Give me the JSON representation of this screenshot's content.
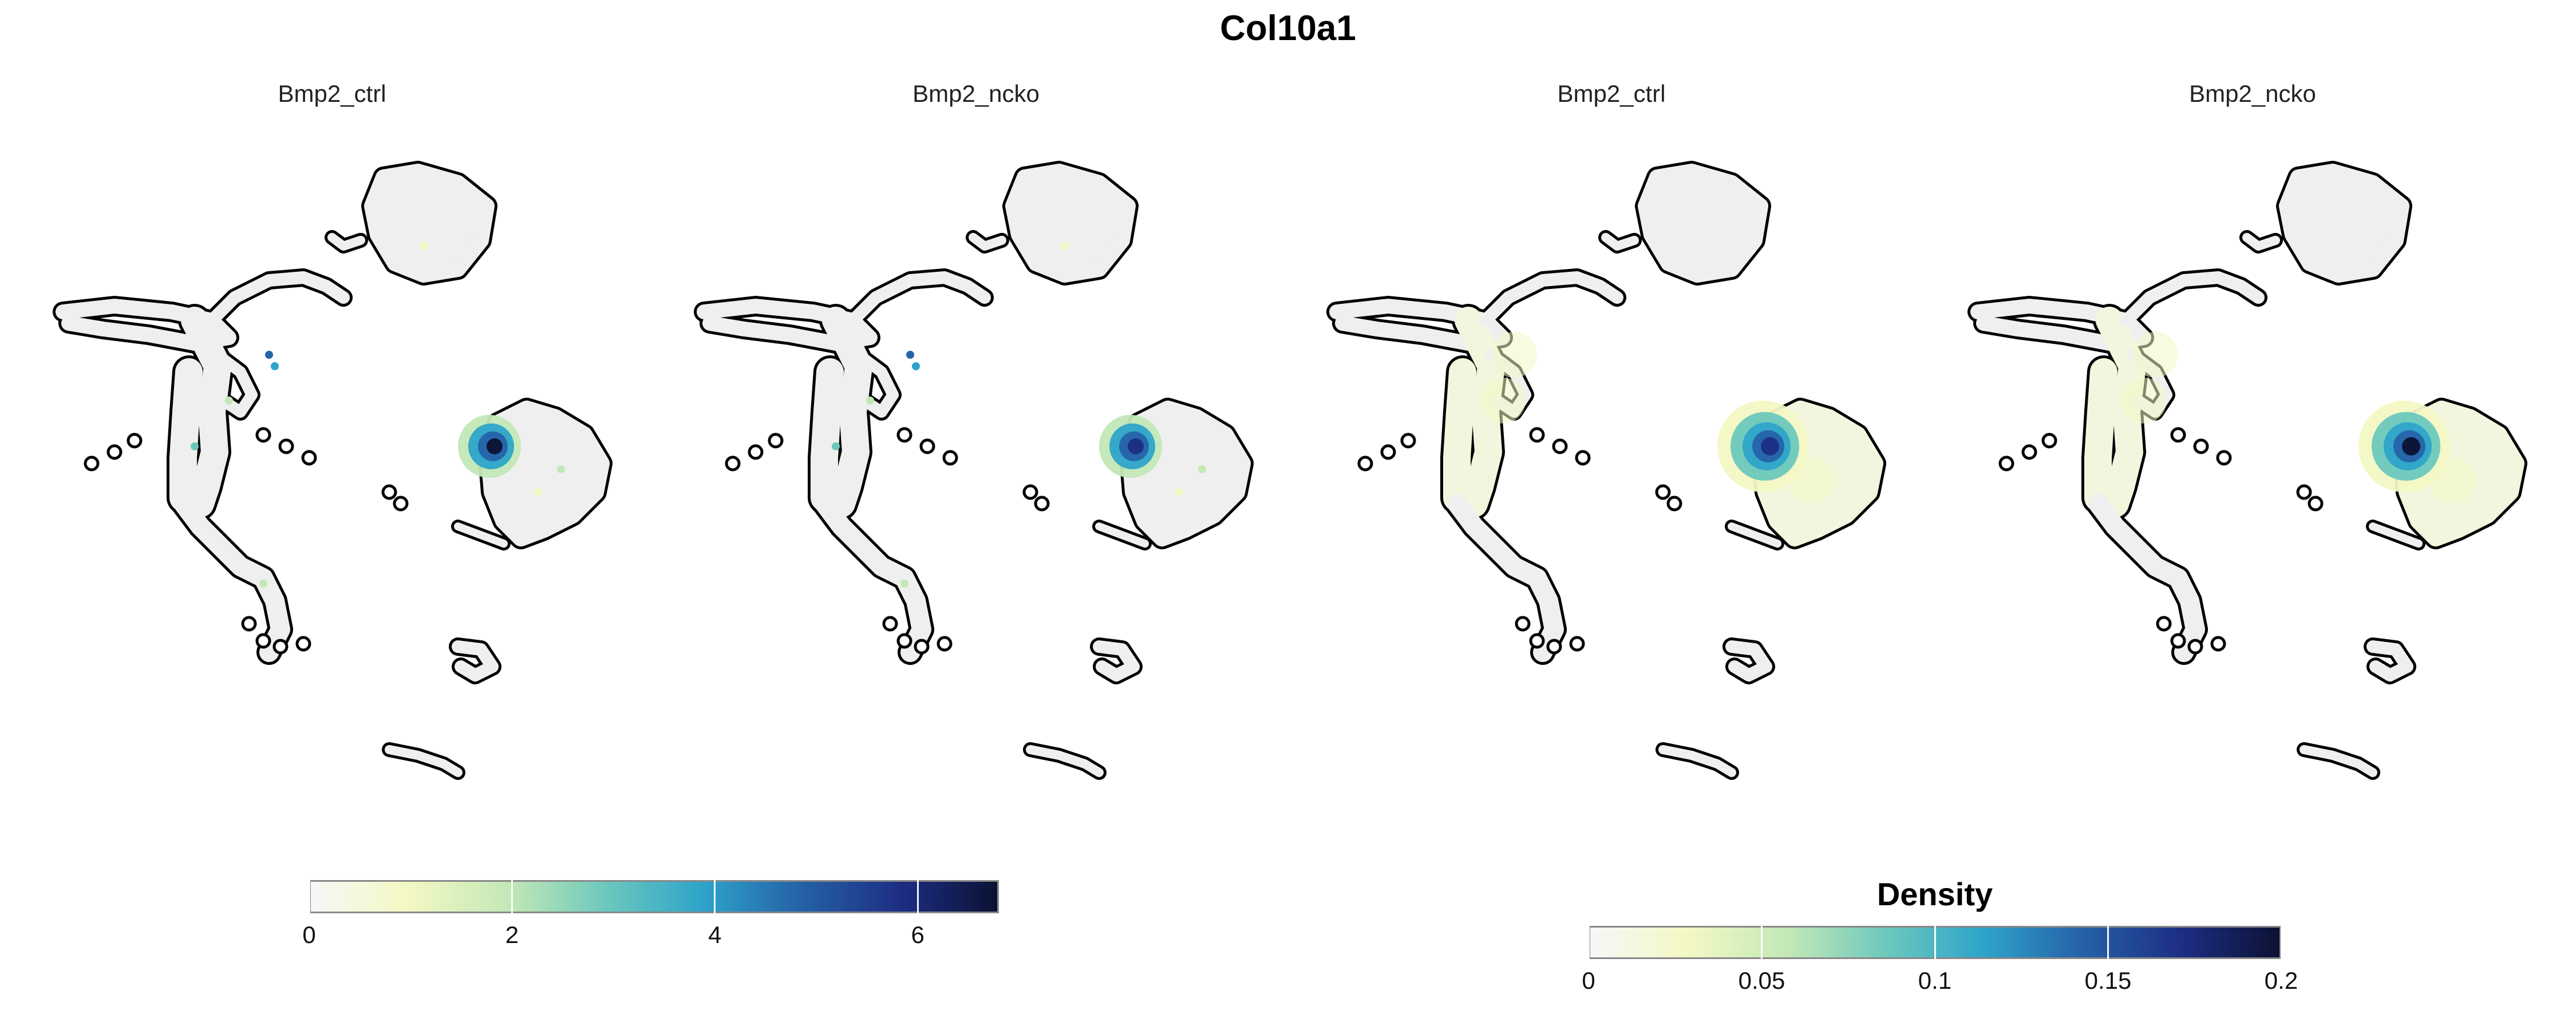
{
  "title": "Col10a1",
  "colors": {
    "cell_fill": "#efefef",
    "outline": "#000000",
    "scale": [
      "#f7f7f7",
      "#f3f8c4",
      "#c2e8b6",
      "#6cc8bd",
      "#2ea4ca",
      "#2563a8",
      "#1d2d83",
      "#0b1233"
    ]
  },
  "chart_data": [
    {
      "type": "scatter",
      "panel": "Bmp2_ctrl",
      "fill_measure": "expression",
      "legend_placement": "bottom",
      "color_scale": {
        "min": 0,
        "max": 6.8,
        "ticks": [
          0,
          2,
          4,
          6
        ],
        "tick_labels": [
          "0",
          "2",
          "4",
          "6"
        ],
        "title": ""
      },
      "hotspot": {
        "location": "central cluster, left edge",
        "peak": 6.5
      }
    },
    {
      "type": "scatter",
      "panel": "Bmp2_ncko",
      "fill_measure": "expression",
      "legend_placement": "bottom",
      "color_scale": {
        "min": 0,
        "max": 6.8,
        "ticks": [
          0,
          2,
          4,
          6
        ],
        "tick_labels": [
          "0",
          "2",
          "4",
          "6"
        ],
        "title": ""
      },
      "hotspot": {
        "location": "central cluster, left edge",
        "peak": 5.5
      }
    },
    {
      "type": "scatter",
      "panel": "Bmp2_ctrl",
      "fill_measure": "density",
      "legend_placement": "bottom",
      "color_scale": {
        "min": 0,
        "max": 0.2,
        "ticks": [
          0,
          0.05,
          0.1,
          0.15,
          0.2
        ],
        "tick_labels": [
          "0",
          "0.05",
          "0.1",
          "0.15",
          "0.2"
        ],
        "title": "Density"
      },
      "hotspot": {
        "location": "central cluster, left edge",
        "peak": 0.18
      }
    },
    {
      "type": "scatter",
      "panel": "Bmp2_ncko",
      "fill_measure": "density",
      "legend_placement": "bottom",
      "color_scale": {
        "min": 0,
        "max": 0.2,
        "ticks": [
          0,
          0.05,
          0.1,
          0.15,
          0.2
        ],
        "tick_labels": [
          "0",
          "0.05",
          "0.1",
          "0.15",
          "0.2"
        ],
        "title": "Density"
      },
      "hotspot": {
        "location": "central cluster, left edge",
        "peak": 0.2
      }
    }
  ]
}
